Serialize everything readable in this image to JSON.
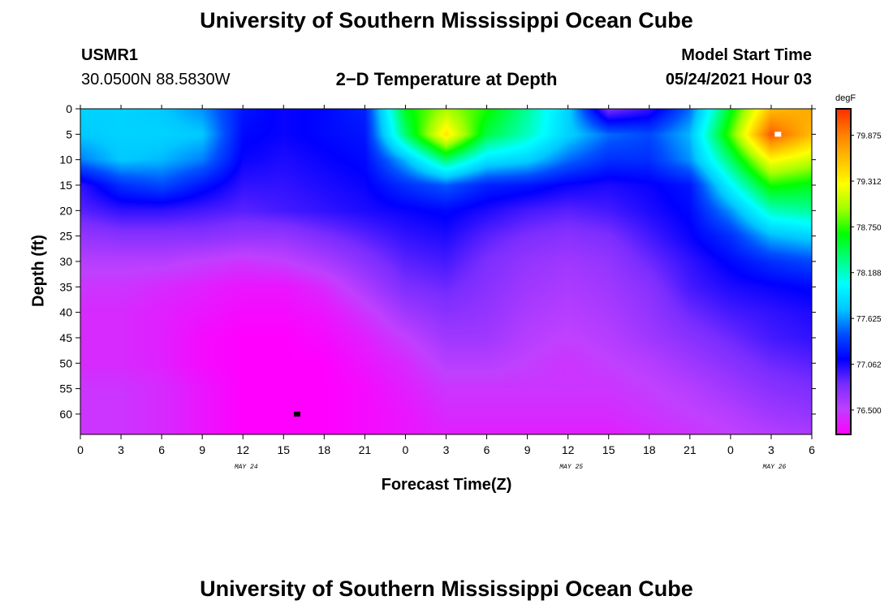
{
  "page": {
    "title_top": "University of Southern Mississippi Ocean Cube",
    "title_bottom": "University of Southern Mississippi Ocean Cube",
    "station_id": "USMR1",
    "coordinates": "30.0500N  88.5830W",
    "plot_title": "2−D Temperature at Depth",
    "model_start_label": "Model Start Time",
    "model_start_value": "05/24/2021 Hour 03"
  },
  "chart_data": {
    "type": "heatmap",
    "title": "2−D Temperature at Depth",
    "xlabel": "Forecast Time(Z)",
    "ylabel": "Depth (ft)",
    "x_ticks": [
      "0",
      "3",
      "6",
      "9",
      "12",
      "15",
      "18",
      "21",
      "0",
      "3",
      "6",
      "9",
      "12",
      "15",
      "18",
      "21",
      "0",
      "3",
      "6"
    ],
    "x_range_hours": [
      0,
      54
    ],
    "x_date_labels": [
      {
        "text": "MAY 24",
        "hour": 12
      },
      {
        "text": "MAY 25",
        "hour": 36
      },
      {
        "text": "MAY 26",
        "hour": 51
      }
    ],
    "y_ticks": [
      "0",
      "5",
      "10",
      "15",
      "20",
      "25",
      "30",
      "35",
      "40",
      "45",
      "50",
      "55",
      "60"
    ],
    "y_range": [
      0,
      64
    ],
    "y_inverted": true,
    "colorbar": {
      "unit": "degF",
      "ticks": [
        "79.875",
        "79.312",
        "78.750",
        "78.188",
        "77.625",
        "77.062",
        "76.500"
      ],
      "range": [
        76.2,
        80.2
      ],
      "colors": [
        "#ff00ff",
        "#c040ff",
        "#7a2dff",
        "#0000ff",
        "#0050ff",
        "#00c8ff",
        "#00ffff",
        "#00ff80",
        "#00ff00",
        "#a0ff00",
        "#ffff00",
        "#ffc000",
        "#ff8000",
        "#ff3000"
      ]
    },
    "temperature_field_degF": {
      "hours": [
        0,
        3,
        6,
        9,
        12,
        15,
        18,
        21,
        24,
        27,
        30,
        33,
        36,
        39,
        42,
        45,
        48,
        51,
        54
      ],
      "depths_ft": [
        0,
        5,
        10,
        15,
        20,
        25,
        30,
        35,
        40,
        45,
        50,
        55,
        60,
        64
      ],
      "values": [
        [
          77.8,
          77.8,
          77.75,
          77.6,
          77.2,
          77.1,
          77.15,
          77.25,
          78.6,
          79.0,
          78.7,
          78.3,
          77.8,
          76.8,
          77.0,
          77.5,
          78.6,
          79.6,
          79.7
        ],
        [
          77.75,
          77.8,
          77.8,
          77.75,
          77.15,
          77.1,
          77.15,
          77.2,
          78.4,
          79.4,
          78.5,
          78.2,
          77.8,
          77.5,
          77.4,
          77.7,
          78.8,
          80.05,
          79.6
        ],
        [
          77.55,
          77.75,
          77.7,
          77.55,
          77.1,
          77.05,
          77.1,
          77.15,
          77.7,
          78.4,
          77.9,
          77.8,
          77.5,
          77.3,
          77.3,
          77.6,
          78.4,
          79.3,
          79.1
        ],
        [
          77.0,
          77.3,
          77.4,
          77.2,
          77.0,
          77.0,
          77.05,
          77.1,
          77.3,
          77.45,
          77.25,
          77.2,
          77.1,
          77.05,
          77.1,
          77.2,
          78.0,
          78.7,
          78.6
        ],
        [
          76.9,
          77.0,
          77.0,
          76.95,
          76.9,
          76.95,
          77.0,
          77.05,
          77.1,
          77.15,
          77.05,
          76.95,
          76.9,
          76.95,
          77.05,
          77.15,
          77.6,
          78.2,
          78.3
        ],
        [
          76.7,
          76.75,
          76.75,
          76.75,
          76.7,
          76.7,
          76.8,
          76.9,
          77.0,
          77.05,
          76.9,
          76.8,
          76.75,
          76.8,
          76.95,
          77.1,
          77.3,
          77.7,
          77.8
        ],
        [
          76.55,
          76.55,
          76.55,
          76.5,
          76.45,
          76.5,
          76.6,
          76.75,
          76.9,
          76.95,
          76.8,
          76.7,
          76.65,
          76.7,
          76.85,
          77.0,
          77.15,
          77.3,
          77.4
        ],
        [
          76.45,
          76.45,
          76.4,
          76.35,
          76.3,
          76.3,
          76.4,
          76.6,
          76.8,
          76.85,
          76.75,
          76.65,
          76.6,
          76.65,
          76.75,
          76.95,
          77.05,
          77.1,
          77.15
        ],
        [
          76.4,
          76.4,
          76.35,
          76.3,
          76.25,
          76.25,
          76.3,
          76.45,
          76.65,
          76.75,
          76.7,
          76.6,
          76.55,
          76.6,
          76.7,
          76.85,
          76.95,
          77.0,
          77.05
        ],
        [
          76.4,
          76.4,
          76.35,
          76.25,
          76.2,
          76.2,
          76.25,
          76.35,
          76.5,
          76.65,
          76.65,
          76.55,
          76.5,
          76.55,
          76.65,
          76.75,
          76.85,
          76.95,
          77.0
        ],
        [
          76.4,
          76.4,
          76.35,
          76.25,
          76.2,
          76.2,
          76.2,
          76.3,
          76.4,
          76.55,
          76.55,
          76.5,
          76.45,
          76.5,
          76.55,
          76.65,
          76.75,
          76.85,
          76.9
        ],
        [
          76.45,
          76.45,
          76.4,
          76.3,
          76.2,
          76.2,
          76.2,
          76.25,
          76.35,
          76.45,
          76.45,
          76.45,
          76.45,
          76.45,
          76.5,
          76.55,
          76.65,
          76.75,
          76.8
        ],
        [
          76.45,
          76.45,
          76.4,
          76.3,
          76.2,
          76.2,
          76.2,
          76.25,
          76.3,
          76.4,
          76.4,
          76.4,
          76.4,
          76.4,
          76.45,
          76.5,
          76.55,
          76.65,
          76.7
        ],
        [
          76.45,
          76.45,
          76.4,
          76.3,
          76.2,
          76.2,
          76.2,
          76.25,
          76.3,
          76.35,
          76.35,
          76.35,
          76.35,
          76.35,
          76.4,
          76.45,
          76.5,
          76.55,
          76.6
        ]
      ]
    },
    "markers": [
      {
        "label": "max",
        "hour": 51.5,
        "depth": 5,
        "color": "#ffffff"
      },
      {
        "label": "min",
        "hour": 16,
        "depth": 60,
        "color": "#000000"
      }
    ],
    "grid": false
  }
}
